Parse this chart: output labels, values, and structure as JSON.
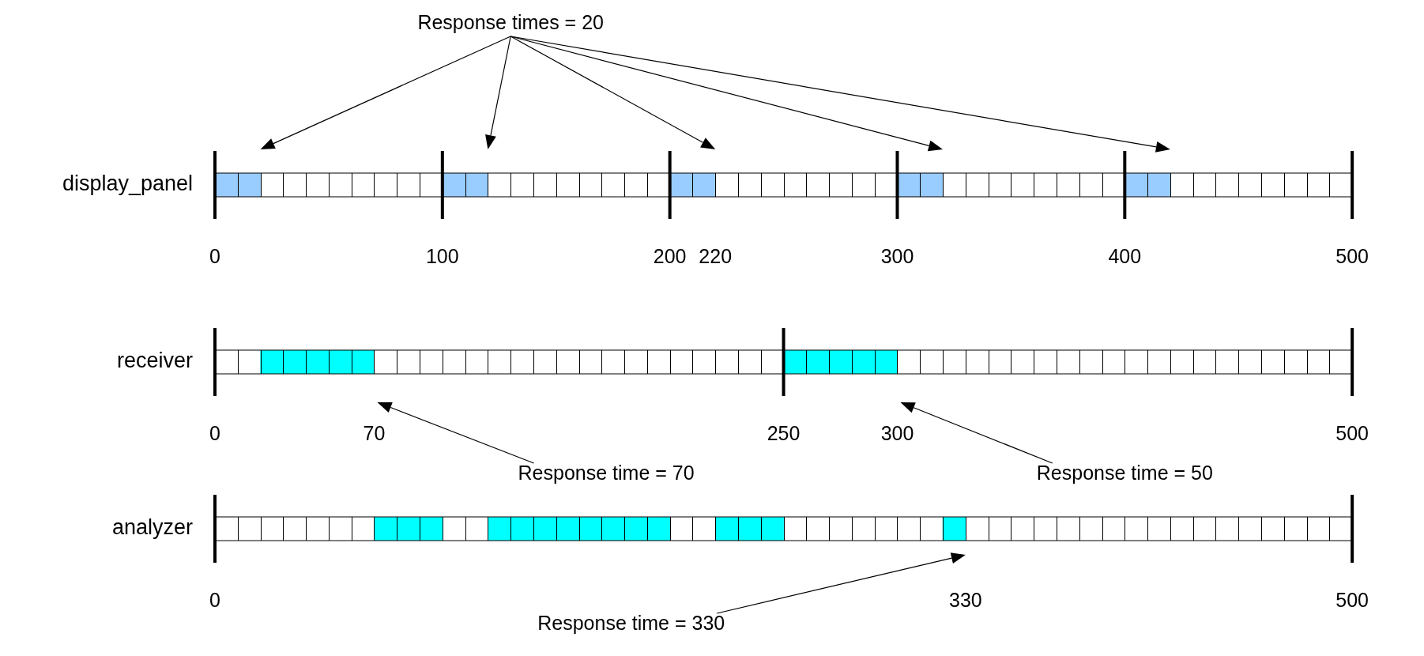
{
  "chart_data": [
    {
      "type": "bar",
      "orientation": "horizontal",
      "categories": [
        "display_panel"
      ],
      "xlim": [
        0,
        500
      ],
      "xticks": [
        0,
        100,
        200,
        220,
        300,
        400,
        500
      ],
      "series": [
        {
          "color": "#99ccff",
          "base": [
            0
          ],
          "values": [
            20
          ]
        },
        {
          "color": "#99ccff",
          "base": [
            100
          ],
          "values": [
            20
          ]
        },
        {
          "color": "#99ccff",
          "base": [
            200
          ],
          "values": [
            20
          ]
        },
        {
          "color": "#99ccff",
          "base": [
            300
          ],
          "values": [
            20
          ]
        },
        {
          "color": "#99ccff",
          "base": [
            400
          ],
          "values": [
            20
          ]
        }
      ],
      "ref_lines": [
        {
          "axis": "x",
          "value": 0
        },
        {
          "axis": "x",
          "value": 100
        },
        {
          "axis": "x",
          "value": 200
        },
        {
          "axis": "x",
          "value": 300
        },
        {
          "axis": "x",
          "value": 400
        },
        {
          "axis": "x",
          "value": 500
        }
      ],
      "annotations": [
        "Response times = 20"
      ]
    },
    {
      "type": "bar",
      "orientation": "horizontal",
      "categories": [
        "receiver"
      ],
      "xlim": [
        0,
        500
      ],
      "xticks": [
        0,
        70,
        250,
        300,
        500
      ],
      "series": [
        {
          "color": "#00ffff",
          "base": [
            20
          ],
          "values": [
            50
          ]
        },
        {
          "color": "#00ffff",
          "base": [
            250
          ],
          "values": [
            50
          ]
        }
      ],
      "ref_lines": [
        {
          "axis": "x",
          "value": 0
        },
        {
          "axis": "x",
          "value": 250
        },
        {
          "axis": "x",
          "value": 500
        }
      ],
      "annotations": [
        "Response time = 70",
        "Response time = 50"
      ]
    },
    {
      "type": "bar",
      "orientation": "horizontal",
      "categories": [
        "analyzer"
      ],
      "xlim": [
        0,
        500
      ],
      "xticks": [
        0,
        330,
        500
      ],
      "series": [
        {
          "color": "#00ffff",
          "base": [
            70
          ],
          "values": [
            30
          ]
        },
        {
          "color": "#00ffff",
          "base": [
            120
          ],
          "values": [
            80
          ]
        },
        {
          "color": "#00ffff",
          "base": [
            220
          ],
          "values": [
            30
          ]
        },
        {
          "color": "#00ffff",
          "base": [
            320
          ],
          "values": [
            10
          ]
        }
      ],
      "ref_lines": [
        {
          "axis": "x",
          "value": 0
        },
        {
          "axis": "x",
          "value": 500
        }
      ],
      "annotations": [
        "Response time = 330"
      ]
    }
  ]
}
